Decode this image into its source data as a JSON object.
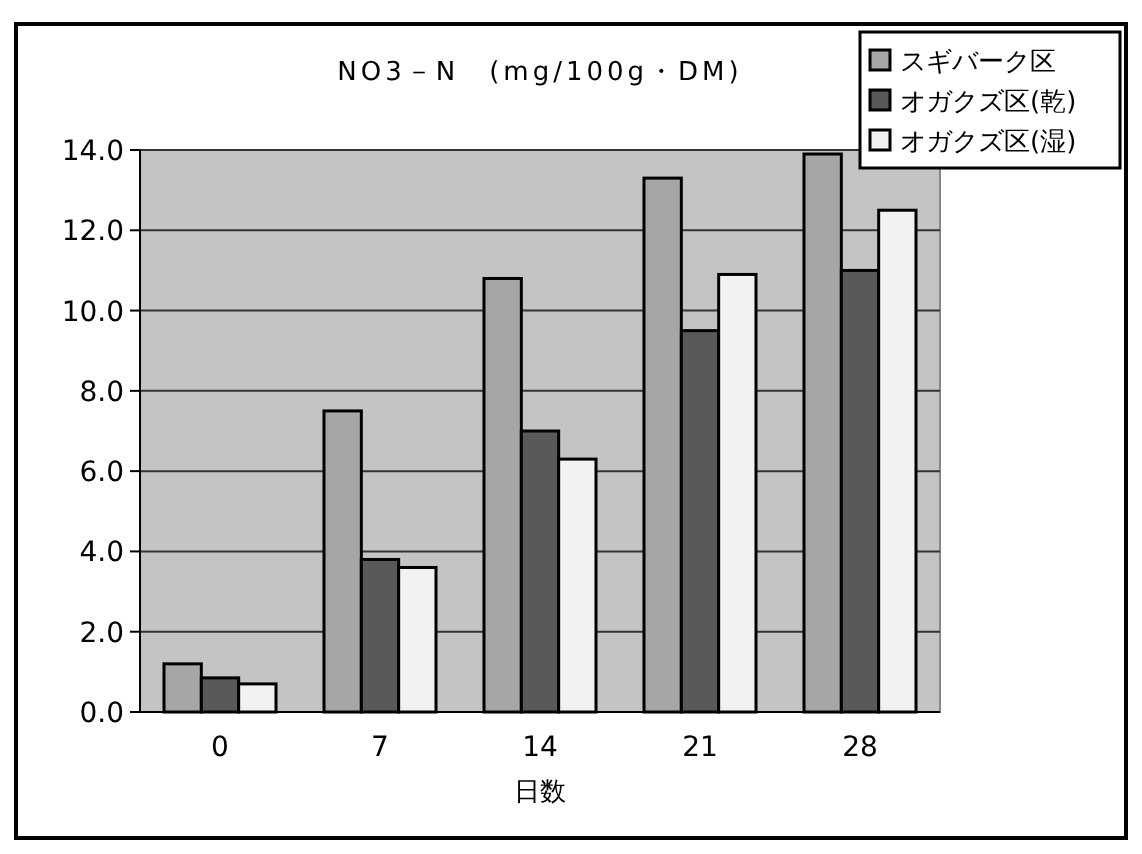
{
  "chart_data": {
    "type": "bar",
    "title": "NO3－N　(mg/100g・DM)",
    "xlabel": "日数",
    "categories": [
      "0",
      "7",
      "14",
      "21",
      "28"
    ],
    "series": [
      {
        "name": "スギバーク区",
        "color": "#a6a6a6",
        "values": [
          1.2,
          7.5,
          10.8,
          13.3,
          13.9
        ]
      },
      {
        "name": "オガクズ区(乾)",
        "color": "#595959",
        "values": [
          0.85,
          3.8,
          7.0,
          9.5,
          11.0
        ]
      },
      {
        "name": "オガクズ区(湿)",
        "color": "#f2f2f2",
        "values": [
          0.7,
          3.6,
          6.3,
          10.9,
          12.5
        ]
      }
    ],
    "ylim": [
      0,
      14
    ],
    "yticks": [
      {
        "value": 0,
        "label": "0.0"
      },
      {
        "value": 2,
        "label": "2.0"
      },
      {
        "value": 4,
        "label": "4.0"
      },
      {
        "value": 6,
        "label": "6.0"
      },
      {
        "value": 8,
        "label": "8.0"
      },
      {
        "value": 10,
        "label": "10.0"
      },
      {
        "value": 12,
        "label": "12.0"
      },
      {
        "value": 14,
        "label": "14.0"
      }
    ],
    "grid": "y",
    "legend": "top right"
  }
}
